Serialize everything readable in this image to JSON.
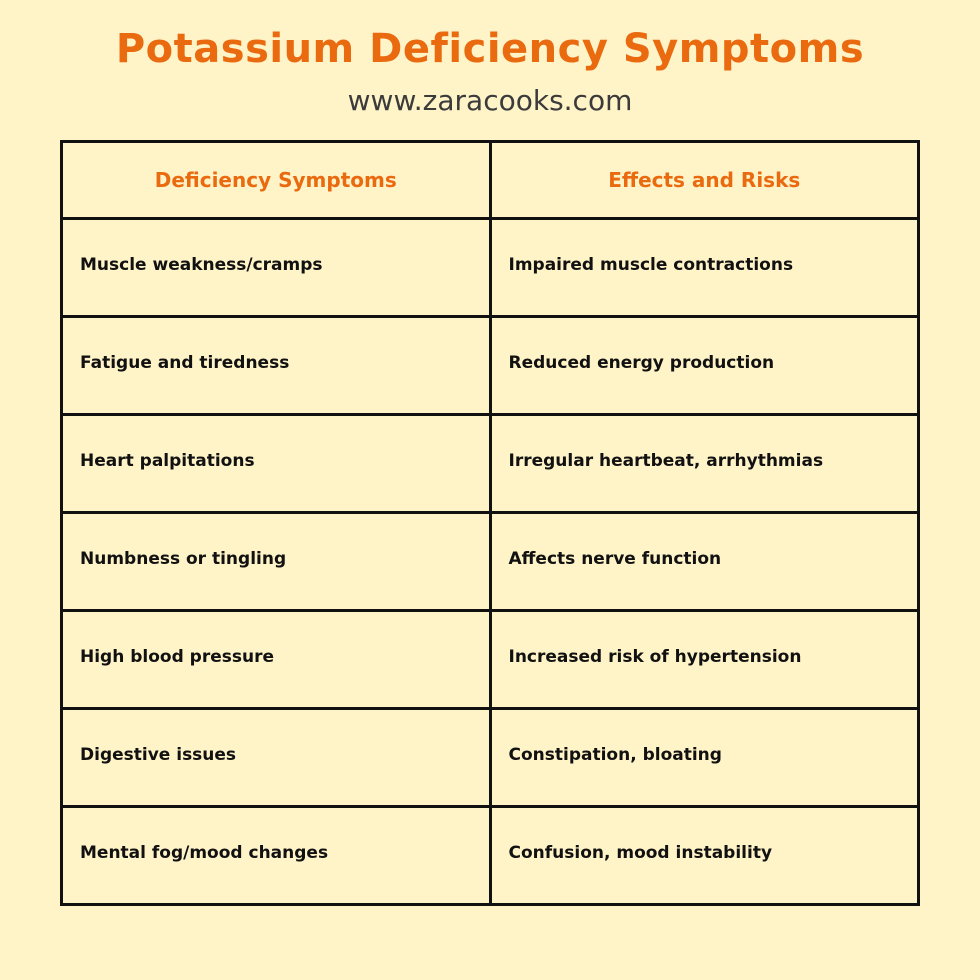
{
  "header": {
    "title": "Potassium Deficiency Symptoms",
    "subtitle": "www.zaracooks.com"
  },
  "table": {
    "columns": [
      "Deficiency Symptoms",
      "Effects and Risks"
    ],
    "rows": [
      [
        "Muscle weakness/cramps",
        "Impaired muscle contractions"
      ],
      [
        "Fatigue and tiredness",
        "Reduced energy production"
      ],
      [
        "Heart palpitations",
        "Irregular heartbeat, arrhythmias"
      ],
      [
        "Numbness or tingling",
        "Affects nerve function"
      ],
      [
        "High blood pressure",
        "Increased risk of hypertension"
      ],
      [
        "Digestive issues",
        "Constipation, bloating"
      ],
      [
        "Mental fog/mood changes",
        "Confusion, mood instability"
      ]
    ]
  },
  "colors": {
    "background": "#fff3c8",
    "accent": "#ea6a0f",
    "text": "#111111",
    "subtitle": "#3b3b3b",
    "border": "#111111"
  }
}
